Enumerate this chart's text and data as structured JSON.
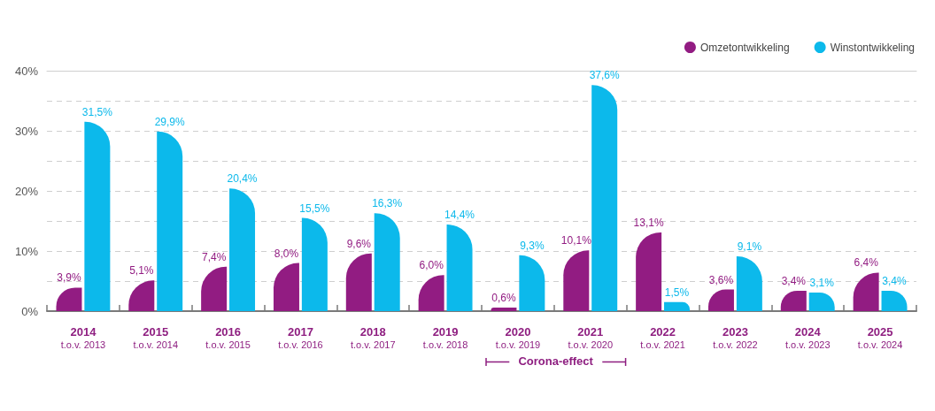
{
  "chart_data": {
    "type": "bar",
    "categories": [
      "2014\nt.o.v. 2013",
      "2015\nt.o.v. 2014",
      "2016\nt.o.v. 2015",
      "2017\nt.o.v. 2016",
      "2018\nt.o.v. 2017",
      "2019\nt.o.v. 2018",
      "2020\nt.o.v. 2019",
      "2021\nt.o.v. 2020",
      "2022\nt.o.v. 2021",
      "2023\nt.o.v. 2022",
      "2024\nt.o.v. 2023",
      "2025\nt.o.v. 2024"
    ],
    "series": [
      {
        "name": "Omzetontwikkeling",
        "color": "#921c82",
        "values": [
          3.9,
          5.1,
          7.4,
          8.0,
          9.6,
          6.0,
          0.6,
          10.1,
          13.1,
          3.6,
          3.4,
          6.4
        ],
        "value_labels": [
          "3,9%",
          "5,1%",
          "7,4%",
          "8,0%",
          "9,6%",
          "6,0%",
          "0,6%",
          "10,1%",
          "13,1%",
          "3,6%",
          "3,4%",
          "6,4%"
        ]
      },
      {
        "name": "Winstontwikkeling",
        "color": "#0cb9eb",
        "values": [
          31.5,
          29.9,
          20.4,
          15.5,
          16.3,
          14.4,
          9.3,
          37.6,
          1.5,
          9.1,
          3.1,
          3.4
        ],
        "value_labels": [
          "31,5%",
          "29,9%",
          "20,4%",
          "15,5%",
          "16,3%",
          "14,4%",
          "9,3%",
          "37,6%",
          "1,5%",
          "9,1%",
          "3,1%",
          "3,4%"
        ]
      }
    ],
    "ylim": [
      0,
      40
    ],
    "yticks": [
      {
        "value": 0,
        "label": "0%"
      },
      {
        "value": 5,
        "label": null
      },
      {
        "value": 10,
        "label": "10%"
      },
      {
        "value": 15,
        "label": null
      },
      {
        "value": 20,
        "label": "20%"
      },
      {
        "value": 25,
        "label": null
      },
      {
        "value": 30,
        "label": "30%"
      },
      {
        "value": 35,
        "label": null
      },
      {
        "value": 40,
        "label": "40%"
      }
    ],
    "grid": "y",
    "legend": "top right",
    "annotations": [
      "Corona-effect"
    ]
  }
}
